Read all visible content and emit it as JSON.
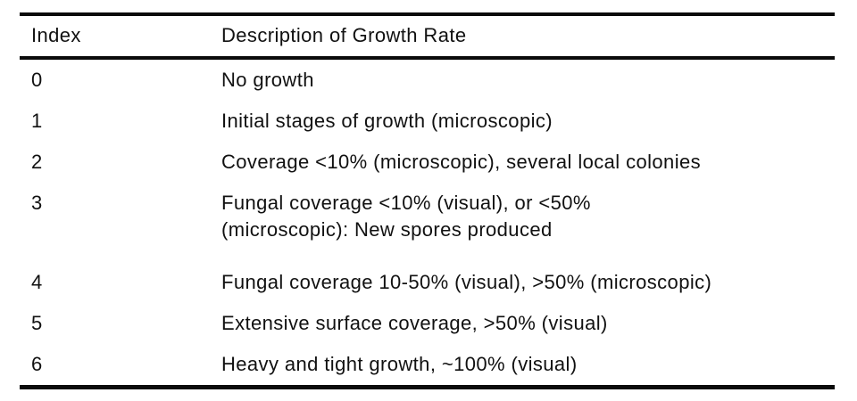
{
  "table": {
    "columns": [
      {
        "label": "Index"
      },
      {
        "label": "Description of Growth Rate"
      }
    ],
    "rows": [
      {
        "index": "0",
        "description": "No growth"
      },
      {
        "index": "1",
        "description": "Initial stages of growth (microscopic)"
      },
      {
        "index": "2",
        "description": "Coverage <10% (microscopic), several local colonies"
      },
      {
        "index": "3",
        "description": "Fungal coverage <10% (visual), or <50%\n(microscopic): New spores produced"
      },
      {
        "index": "4",
        "description": "Fungal coverage 10-50% (visual), >50% (microscopic)"
      },
      {
        "index": "5",
        "description": "Extensive surface coverage, >50% (visual)"
      },
      {
        "index": "6",
        "description": "Heavy and tight growth, ~100% (visual)"
      }
    ],
    "colors": {
      "text": "#111111",
      "rule": "#0b0b0b",
      "background": "#ffffff"
    }
  }
}
